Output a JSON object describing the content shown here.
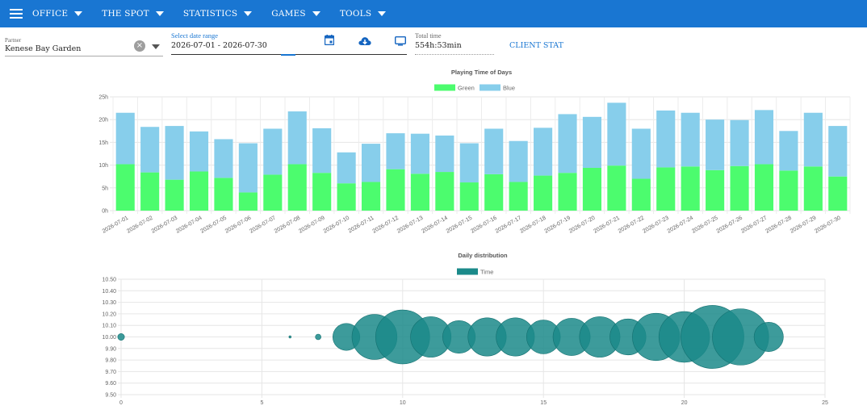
{
  "nav": {
    "menu": [
      {
        "label": "OFFICE"
      },
      {
        "label": "THE SPOT"
      },
      {
        "label": "STATISTICS"
      },
      {
        "label": "GAMES"
      },
      {
        "label": "TOOLS"
      }
    ],
    "color": "#1976d2"
  },
  "filters": {
    "partner_label": "Partner",
    "partner_value": "Kenese Bay Garden",
    "date_label": "Select date range",
    "date_value": "2026-07-01 - 2026-07-30",
    "total_label": "Total time",
    "total_value": "554h:53min",
    "client_stat": "CLIENT STAT"
  },
  "chart_data": [
    {
      "type": "bar",
      "stacked": true,
      "title": "Playing Time of Days",
      "legend_position": "top",
      "categories": [
        "2026-07-01",
        "2026-07-02",
        "2026-07-03",
        "2026-07-04",
        "2026-07-05",
        "2026-07-06",
        "2026-07-07",
        "2026-07-08",
        "2026-07-09",
        "2026-07-10",
        "2026-07-11",
        "2026-07-12",
        "2026-07-13",
        "2026-07-14",
        "2026-07-15",
        "2026-07-16",
        "2026-07-17",
        "2026-07-18",
        "2026-07-19",
        "2026-07-20",
        "2026-07-21",
        "2026-07-22",
        "2026-07-23",
        "2026-07-24",
        "2026-07-25",
        "2026-07-26",
        "2026-07-27",
        "2026-07-28",
        "2026-07-29",
        "2026-07-30"
      ],
      "series": [
        {
          "name": "Green",
          "color": "#4cfc6e",
          "values": [
            10.2,
            8.4,
            6.8,
            8.6,
            7.2,
            4.0,
            7.9,
            10.2,
            8.3,
            6.0,
            6.3,
            9.1,
            8.1,
            8.5,
            6.2,
            8.0,
            6.3,
            7.7,
            8.3,
            9.4,
            9.9,
            7.0,
            9.5,
            9.7,
            8.9,
            9.8,
            10.2,
            8.8,
            9.7,
            7.5
          ]
        },
        {
          "name": "Blue",
          "color": "#87ceeb",
          "values": [
            11.3,
            10.0,
            11.8,
            8.8,
            8.5,
            10.8,
            10.1,
            11.6,
            9.8,
            6.8,
            8.4,
            7.9,
            8.8,
            8.0,
            8.6,
            10.0,
            9.0,
            10.5,
            12.9,
            11.2,
            13.8,
            11.0,
            12.5,
            11.8,
            11.1,
            10.1,
            11.9,
            8.7,
            11.8,
            11.1
          ]
        }
      ],
      "yticks": [
        "0h",
        "5h",
        "10h",
        "15h",
        "20h",
        "25h"
      ],
      "ylim": [
        0,
        25
      ],
      "grid": true
    },
    {
      "type": "scatter",
      "subtype": "bubble",
      "title": "Daily distribution",
      "legend_position": "top",
      "series": [
        {
          "name": "Time",
          "color": "#1b8a8a",
          "x": [
            0,
            6,
            7,
            8,
            9,
            10,
            11,
            12,
            13,
            14,
            15,
            16,
            17,
            18,
            19,
            20,
            21,
            22,
            23
          ],
          "y": [
            10,
            10,
            10,
            10,
            10,
            10,
            10,
            10,
            10,
            10,
            10,
            10,
            10,
            10,
            10,
            10,
            10,
            10,
            10
          ],
          "r": [
            0.6,
            0.2,
            0.5,
            2.4,
            4.0,
            4.8,
            3.6,
            2.9,
            3.4,
            3.4,
            3.0,
            3.3,
            3.6,
            3.2,
            4.2,
            4.5,
            5.6,
            5.0,
            2.6
          ]
        }
      ],
      "xticks": [
        "0",
        "5",
        "10",
        "15",
        "20",
        "25"
      ],
      "yticks": [
        "9.50",
        "9.60",
        "9.70",
        "9.80",
        "9.90",
        "10.00",
        "10.10",
        "10.20",
        "10.30",
        "10.40",
        "10.50"
      ],
      "xlim": [
        0,
        25
      ],
      "ylim": [
        9.5,
        10.5
      ],
      "grid": true
    }
  ]
}
